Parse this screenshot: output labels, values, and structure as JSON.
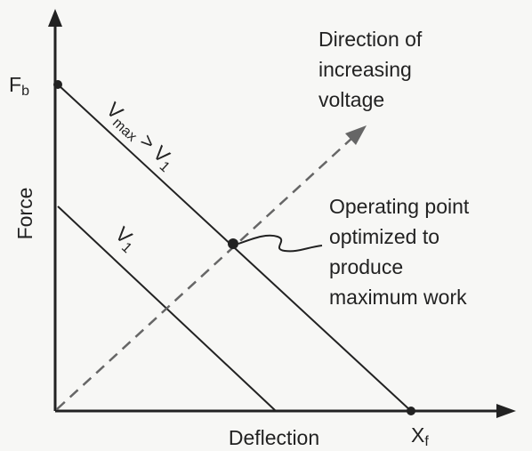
{
  "axes": {
    "y_label": "Force",
    "x_label": "Deflection"
  },
  "points": {
    "fb": {
      "main": "F",
      "sub": "b"
    },
    "xf": {
      "main": "X",
      "sub": "f"
    }
  },
  "lines": {
    "vmax": {
      "v": "V",
      "sub": "max",
      "mid": " > V",
      "sub2": "1"
    },
    "v1": {
      "v": "V",
      "sub": "1"
    }
  },
  "direction": {
    "lines": [
      "Direction of",
      "increasing",
      "voltage"
    ]
  },
  "operating_point": {
    "lines": [
      "Operating point",
      "optimized to",
      "produce",
      "maximum work"
    ]
  }
}
